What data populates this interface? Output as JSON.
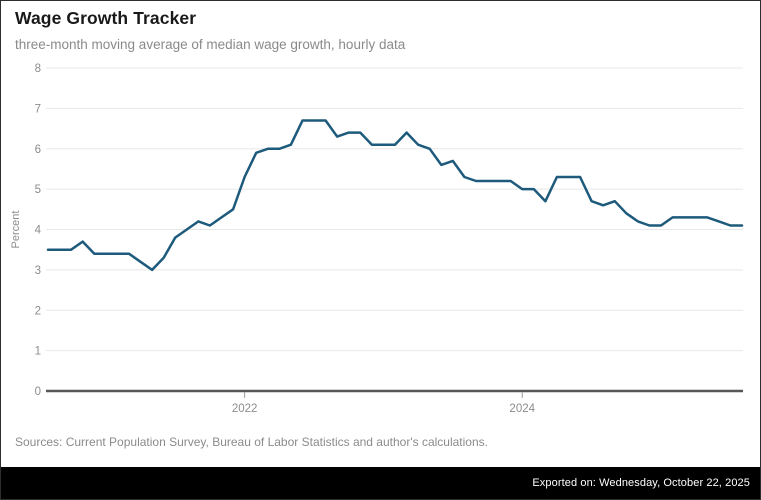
{
  "header": {
    "title": "Wage Growth Tracker",
    "subtitle": "three-month moving average of median wage growth, hourly data"
  },
  "source_note": "Sources: Current Population Survey, Bureau of Labor Statistics and author's calculations.",
  "footer": {
    "exported_text": "Exported on: Wednesday, October 22, 2025",
    "background": "#000000",
    "text_color": "#ffffff"
  },
  "colors": {
    "line": "#1d5a7c",
    "grid": "#e8e8e8",
    "axis": "#565656",
    "tick_labels": "#8c8c8c",
    "title": "#191919",
    "subtitle": "#8a8a8a"
  },
  "chart_data": {
    "type": "line",
    "title": "Wage Growth Tracker",
    "subtitle": "three-month moving average of median wage growth, hourly data",
    "xlabel": "",
    "ylabel": "Percent",
    "ylim": [
      0,
      8
    ],
    "yticks": [
      0,
      1,
      2,
      3,
      4,
      5,
      6,
      7,
      8
    ],
    "grid": "horizontal",
    "legend": "none",
    "xticks": [
      {
        "label": "2022",
        "month": "2022-01"
      },
      {
        "label": "2024",
        "month": "2024-01"
      }
    ],
    "series_name": "Median wage growth (3-month moving average, hourly)",
    "x": [
      "2020-08",
      "2020-09",
      "2020-10",
      "2020-11",
      "2020-12",
      "2021-01",
      "2021-02",
      "2021-03",
      "2021-04",
      "2021-05",
      "2021-06",
      "2021-07",
      "2021-08",
      "2021-09",
      "2021-10",
      "2021-11",
      "2021-12",
      "2022-01",
      "2022-02",
      "2022-03",
      "2022-04",
      "2022-05",
      "2022-06",
      "2022-07",
      "2022-08",
      "2022-09",
      "2022-10",
      "2022-11",
      "2022-12",
      "2023-01",
      "2023-02",
      "2023-03",
      "2023-04",
      "2023-05",
      "2023-06",
      "2023-07",
      "2023-08",
      "2023-09",
      "2023-10",
      "2023-11",
      "2023-12",
      "2024-01",
      "2024-02",
      "2024-03",
      "2024-04",
      "2024-05",
      "2024-06",
      "2024-07",
      "2024-08",
      "2024-09",
      "2024-10",
      "2024-11",
      "2024-12",
      "2025-01",
      "2025-02",
      "2025-03",
      "2025-04",
      "2025-05",
      "2025-06",
      "2025-07",
      "2025-08"
    ],
    "values": [
      3.5,
      3.5,
      3.5,
      3.7,
      3.4,
      3.4,
      3.4,
      3.4,
      3.2,
      3.0,
      3.3,
      3.8,
      4.0,
      4.2,
      4.1,
      4.3,
      4.5,
      5.3,
      5.9,
      6.0,
      6.0,
      6.1,
      6.7,
      6.7,
      6.7,
      6.3,
      6.4,
      6.4,
      6.1,
      6.1,
      6.1,
      6.4,
      6.1,
      6.0,
      5.6,
      5.7,
      5.3,
      5.2,
      5.2,
      5.2,
      5.2,
      5.0,
      5.0,
      4.7,
      5.3,
      5.3,
      5.3,
      4.7,
      4.6,
      4.7,
      4.4,
      4.2,
      4.1,
      4.1,
      4.3,
      4.3,
      4.3,
      4.3,
      4.2,
      4.1,
      4.1
    ]
  }
}
